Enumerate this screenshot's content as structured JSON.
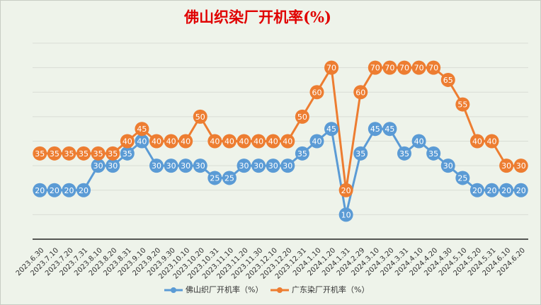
{
  "chart_data": {
    "type": "line",
    "title": "佛山织染厂开机率(%)",
    "categories": [
      "2023.6.30",
      "2023.7.10",
      "2023.7.20",
      "2023.7.31",
      "2023.8.10",
      "2023.8.20",
      "2023.8.31",
      "2023.9.10",
      "2023.9.20",
      "2023.9.30",
      "2023.10.10",
      "2023.10.20",
      "2023.10.31",
      "2023.11.10",
      "2023.11.20",
      "2023.11.30",
      "2023.12.10",
      "2023.12.20",
      "2023.12.31",
      "2024.1.10",
      "2024.1.20",
      "2024.1.31",
      "2024.2.29",
      "2024.3.10",
      "2024.3.20",
      "2024.3.31",
      "2024.4.10",
      "2024.4.20",
      "2024.4.30",
      "2024.5.10",
      "2024.5.20",
      "2024.5.31",
      "2024.6.10",
      "2024.6.20"
    ],
    "series": [
      {
        "name": "佛山织厂开机率（%）",
        "color": "#5b9bd5",
        "values": [
          20,
          20,
          20,
          20,
          30,
          30,
          35,
          40,
          30,
          30,
          30,
          30,
          25,
          25,
          30,
          30,
          30,
          30,
          35,
          40,
          45,
          10,
          35,
          45,
          45,
          35,
          40,
          35,
          30,
          25,
          20,
          20,
          20,
          20
        ]
      },
      {
        "name": "广东染厂开机率（%）",
        "color": "#ed7d31",
        "values": [
          35,
          35,
          35,
          35,
          35,
          35,
          40,
          45,
          40,
          40,
          40,
          50,
          40,
          40,
          40,
          40,
          40,
          40,
          50,
          60,
          70,
          20,
          60,
          70,
          70,
          70,
          70,
          70,
          65,
          55,
          40,
          40,
          30,
          30
        ]
      }
    ],
    "ylim": [
      0,
      80
    ],
    "grid": true
  }
}
